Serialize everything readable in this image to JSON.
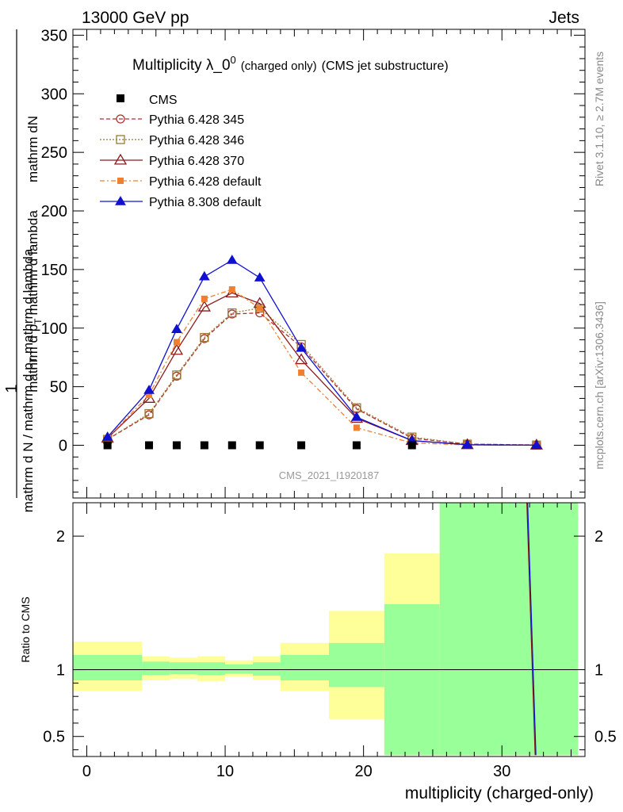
{
  "header": {
    "left": "13000 GeV pp",
    "right": "Jets"
  },
  "side": {
    "rivet": "Rivet 3.1.10, ≥ 2.7M events",
    "mcplots": "mcplots.cern.ch [arXiv:1306.3436]"
  },
  "chart_data": {
    "type": "line",
    "title": "Multiplicity λ_0",
    "title_sup": "0",
    "title_small": "(charged only)",
    "title_tail": "(CMS jet substructure)",
    "watermark": "CMS_2021_I1920187",
    "ylabel_main": "1",
    "ylabel_numerator": "mathrm dN",
    "ylabel_denominator": "mathrm d N / mathrm d p",
    "ylabel_sub": "T",
    "ylabel_mid": "mathrm d p",
    "ylabel_mid_sub": "T",
    "ylabel_tail": "mathrm d lambda",
    "ylabel_denominator_tail": "mathrm d lambda",
    "xlabel": "multiplicity (charged-only)",
    "ratio_ylabel": "Ratio to CMS",
    "xlim": [
      -1,
      36
    ],
    "ylim": [
      -45,
      355
    ],
    "ratio_ylim": [
      0.35,
      2.25
    ],
    "x_ticks": [
      0,
      10,
      20,
      30
    ],
    "y_ticks": [
      0,
      50,
      100,
      150,
      200,
      250,
      300,
      350
    ],
    "ratio_ticks": [
      0.5,
      1,
      2
    ],
    "bins": [
      [
        -1,
        4
      ],
      [
        4,
        6
      ],
      [
        6,
        8
      ],
      [
        8,
        10
      ],
      [
        10,
        12
      ],
      [
        12,
        14
      ],
      [
        14,
        17.5
      ],
      [
        17.5,
        21.5
      ],
      [
        21.5,
        25.5
      ],
      [
        25.5,
        29.5
      ],
      [
        29.5,
        35.5
      ]
    ],
    "band_green": [
      [
        0.92,
        1.11
      ],
      [
        0.96,
        1.06
      ],
      [
        0.965,
        1.055
      ],
      [
        0.96,
        1.055
      ],
      [
        0.97,
        1.04
      ],
      [
        0.955,
        1.055
      ],
      [
        0.92,
        1.11
      ],
      [
        0.87,
        1.2
      ],
      [
        0.36,
        1.49
      ],
      [
        0.36,
        2.25
      ],
      [
        0.36,
        2.25
      ]
    ],
    "band_yellow": [
      [
        0.84,
        1.21
      ],
      [
        0.92,
        1.1
      ],
      [
        0.93,
        1.09
      ],
      [
        0.915,
        1.1
      ],
      [
        0.95,
        1.07
      ],
      [
        0.925,
        1.1
      ],
      [
        0.84,
        1.2
      ],
      [
        0.63,
        1.44
      ],
      [
        0.36,
        1.87
      ],
      [
        0.36,
        2.25
      ],
      [
        0.36,
        2.25
      ]
    ],
    "ratio_line": {
      "x": [
        31.8,
        32.4
      ],
      "y": [
        2.25,
        0.36
      ]
    },
    "cms": {
      "name": "CMS",
      "x": [
        1.5,
        4.5,
        6.5,
        8.5,
        10.5,
        12.5,
        15.5,
        19.5,
        23.5
      ],
      "y": [
        0,
        0,
        0,
        0,
        0,
        0,
        0,
        0,
        0
      ]
    },
    "series": [
      {
        "name": "Pythia 6.428 345",
        "color": "#b03030",
        "dash": "5,3",
        "marker": "circle",
        "x": [
          1.5,
          4.5,
          6.5,
          8.5,
          10.5,
          12.5,
          15.5,
          19.5,
          23.5,
          27.5,
          32.5
        ],
        "y": [
          5,
          26,
          59,
          91,
          112,
          113,
          84,
          31,
          6,
          1,
          0.2
        ]
      },
      {
        "name": "Pythia 6.428 346",
        "color": "#9b7a33",
        "dash": "2,2",
        "marker": "square-open",
        "x": [
          1.5,
          4.5,
          6.5,
          8.5,
          10.5,
          12.5,
          15.5,
          19.5,
          23.5,
          27.5,
          32.5
        ],
        "y": [
          5,
          27,
          60,
          92,
          113,
          117,
          86,
          32,
          7,
          1,
          0.2
        ]
      },
      {
        "name": "Pythia 6.428 370",
        "color": "#8b1a1a",
        "dash": "",
        "marker": "triangle-open",
        "x": [
          1.5,
          4.5,
          6.5,
          8.5,
          10.5,
          12.5,
          15.5,
          19.5,
          23.5,
          27.5,
          32.5
        ],
        "y": [
          6,
          40,
          81,
          118,
          130,
          121,
          73,
          23,
          4,
          0.5,
          0.1
        ]
      },
      {
        "name": "Pythia 6.428 default",
        "color": "#f08030",
        "dash": "6,3,2,3",
        "marker": "square-filled",
        "x": [
          1.5,
          4.5,
          6.5,
          8.5,
          10.5,
          12.5,
          15.5,
          19.5,
          23.5,
          27.5,
          32.5
        ],
        "y": [
          6,
          43,
          88,
          125,
          133,
          117,
          62,
          15,
          2,
          0.3,
          0.1
        ]
      },
      {
        "name": "Pythia 8.308 default",
        "color": "#1010d0",
        "dash": "",
        "marker": "triangle-filled",
        "x": [
          1.5,
          4.5,
          6.5,
          8.5,
          10.5,
          12.5,
          15.5,
          19.5,
          23.5,
          27.5,
          32.5
        ],
        "y": [
          7,
          47,
          99,
          144,
          158,
          143,
          83,
          24,
          4,
          0.4,
          0.1
        ]
      }
    ]
  }
}
